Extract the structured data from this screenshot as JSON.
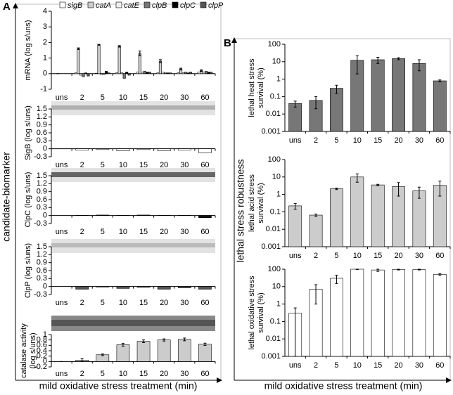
{
  "figure": {
    "panel_a": "A",
    "panel_b": "B",
    "a_axis": "candidate-biomarker",
    "b_axis": "lethal stress robustness",
    "a_x_title": "mild oxidative stress treatment (min)",
    "b_x_title": "mild oxidative stress treatment (min)"
  },
  "chart_data": [
    {
      "type": "bar",
      "y_label": "mRNA (log s/uns)",
      "categories": [
        "uns",
        "2",
        "5",
        "10",
        "15",
        "20",
        "30",
        "60"
      ],
      "ylim": [
        -1,
        4
      ],
      "yticks": [
        -1,
        0,
        1,
        2,
        3,
        4
      ],
      "legend": "top",
      "series": [
        {
          "name": "sigB",
          "color": "#ffffff",
          "values": [
            0,
            0.05,
            0.03,
            0.05,
            0.1,
            0.05,
            0.05,
            0.1
          ]
        },
        {
          "name": "catA",
          "color": "#cccccc",
          "values": [
            0,
            1.6,
            1.85,
            1.75,
            1.3,
            0.8,
            0.3,
            0.2
          ],
          "errors": [
            0,
            0.05,
            0.03,
            0.05,
            0.15,
            0.1,
            0.05,
            0.05
          ]
        },
        {
          "name": "catE",
          "color": "#eeeeee",
          "values": [
            0,
            -0.1,
            -0.05,
            0.05,
            0.1,
            0.1,
            0.05,
            0.1
          ]
        },
        {
          "name": "clpB",
          "color": "#777777",
          "values": [
            0,
            -0.2,
            -0.05,
            -0.3,
            0.15,
            0.05,
            0.1,
            0.15
          ]
        },
        {
          "name": "clpC",
          "color": "#000000",
          "values": [
            0,
            0.05,
            0.15,
            0.1,
            0.1,
            0.05,
            0.05,
            0.1
          ]
        },
        {
          "name": "clpP",
          "color": "#555555",
          "values": [
            0,
            -0.15,
            0.05,
            -0.1,
            0.1,
            0.05,
            0.1,
            0.1
          ]
        }
      ]
    },
    {
      "type": "bar",
      "y_label": "SigB (log s/uns)",
      "categories": [
        "uns",
        "2",
        "5",
        "10",
        "15",
        "20",
        "30",
        "60"
      ],
      "ylim": [
        -0.3,
        1.5
      ],
      "yticks": [
        -0.3,
        0,
        0.3,
        0.6,
        0.9,
        1.2,
        1.5
      ],
      "color": "#ffffff",
      "values": [
        0,
        -0.05,
        -0.03,
        -0.08,
        -0.03,
        -0.08,
        -0.05,
        -0.15
      ]
    },
    {
      "type": "bar",
      "y_label": "ClpC (log s/uns)",
      "categories": [
        "uns",
        "2",
        "5",
        "10",
        "15",
        "20",
        "30",
        "60"
      ],
      "ylim": [
        -0.3,
        1.5
      ],
      "yticks": [
        -0.3,
        0,
        0.3,
        0.6,
        0.9,
        1.2,
        1.5
      ],
      "color": "#111111",
      "values": [
        0,
        0.01,
        0.02,
        0.01,
        0.02,
        0.01,
        0.01,
        -0.08
      ]
    },
    {
      "type": "bar",
      "y_label": "ClpP (log s/uns)",
      "categories": [
        "uns",
        "2",
        "5",
        "10",
        "15",
        "20",
        "30",
        "60"
      ],
      "ylim": [
        -0.3,
        1.5
      ],
      "yticks": [
        -0.3,
        0,
        0.3,
        0.6,
        0.9,
        1.2,
        1.5
      ],
      "color": "#555555",
      "values": [
        0,
        -0.1,
        -0.02,
        -0.07,
        -0.03,
        -0.1,
        -0.05,
        -0.1
      ]
    },
    {
      "type": "bar",
      "y_label": [
        "catalase activity",
        "(log s/uns)"
      ],
      "categories": [
        "uns",
        "2",
        "5",
        "10",
        "15",
        "20",
        "30",
        "60"
      ],
      "ylim": [
        -0.2,
        1
      ],
      "yticks": [
        -0.2,
        0,
        0.2,
        0.4,
        0.6,
        0.8,
        1
      ],
      "color": "#cccccc",
      "values": [
        0,
        0.05,
        0.25,
        0.62,
        0.75,
        0.8,
        0.82,
        0.64
      ],
      "errors": [
        0,
        0.05,
        0.03,
        0.05,
        0.05,
        0.04,
        0.05,
        0.04
      ]
    },
    {
      "type": "bar",
      "y_label": [
        "lethal heat stress",
        "survival (%)"
      ],
      "categories": [
        "uns",
        "2",
        "5",
        "10",
        "15",
        "20",
        "30",
        "60"
      ],
      "log_scale": true,
      "ylim": [
        0.001,
        100
      ],
      "yticks": [
        0.001,
        0.01,
        0.1,
        1,
        10,
        100
      ],
      "color": "#777777",
      "values": [
        0.04,
        0.06,
        0.3,
        12,
        13,
        15,
        8,
        0.8
      ],
      "errors": [
        0.015,
        0.04,
        0.15,
        10,
        5,
        2,
        5,
        0.1
      ]
    },
    {
      "type": "bar",
      "y_label": [
        "lethal acid stress",
        "survival (%)"
      ],
      "categories": [
        "uns",
        "2",
        "5",
        "10",
        "15",
        "20",
        "30",
        "60"
      ],
      "log_scale": true,
      "ylim": [
        0.001,
        100
      ],
      "yticks": [
        0.001,
        0.01,
        0.1,
        1,
        10,
        100
      ],
      "color": "#cccccc",
      "values": [
        0.22,
        0.065,
        2.1,
        10,
        3.5,
        2.8,
        1.6,
        3.3
      ],
      "errors": [
        0.08,
        0.01,
        0.2,
        5,
        0.3,
        2,
        1,
        2.5
      ]
    },
    {
      "type": "bar",
      "y_label": [
        "lethal oxidative stress",
        "survival (%)"
      ],
      "categories": [
        "uns",
        "2",
        "5",
        "10",
        "15",
        "20",
        "30",
        "60"
      ],
      "log_scale": true,
      "ylim": [
        0.001,
        100
      ],
      "yticks": [
        0.001,
        0.01,
        0.1,
        1,
        10,
        100
      ],
      "color": "#ffffff",
      "values": [
        0.3,
        7,
        30,
        100,
        90,
        95,
        95,
        50
      ],
      "errors": [
        0.3,
        6,
        15,
        5,
        15,
        5,
        5,
        5
      ]
    }
  ]
}
